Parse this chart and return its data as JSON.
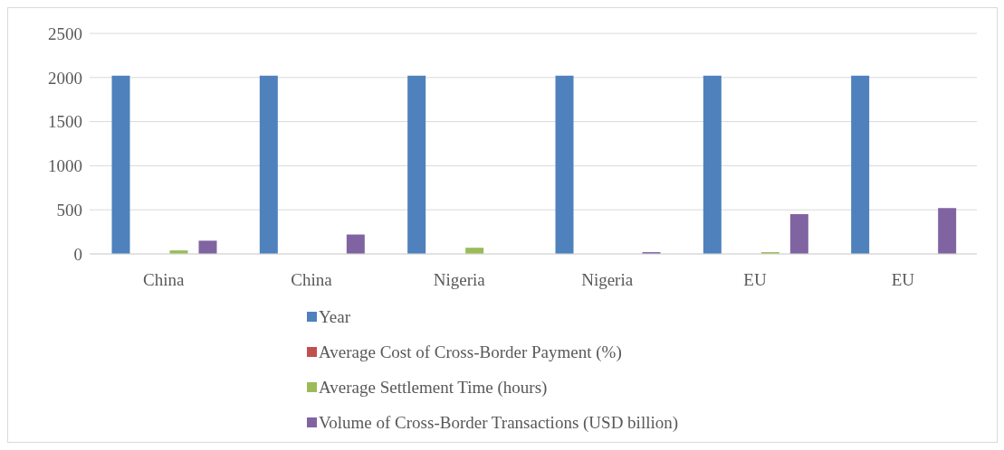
{
  "chart_data": {
    "type": "bar",
    "categories": [
      "China",
      "China",
      "Nigeria",
      "Nigeria",
      "EU",
      "EU"
    ],
    "series": [
      {
        "name": "Year",
        "color": "#4f81bd",
        "values": [
          2020,
          2020,
          2020,
          2020,
          2020,
          2020
        ]
      },
      {
        "name": "Average Cost of Cross-Border Payment (%)",
        "color": "#c0504d",
        "values": [
          0,
          0,
          0,
          0,
          0,
          0
        ]
      },
      {
        "name": "Average Settlement Time (hours)",
        "color": "#9bbb59",
        "values": [
          40,
          0,
          70,
          0,
          20,
          0
        ]
      },
      {
        "name": "Volume of Cross-Border Transactions (USD billion)",
        "color": "#8064a2",
        "values": [
          150,
          220,
          0,
          20,
          450,
          520
        ]
      }
    ],
    "ylim": [
      0,
      2500
    ],
    "yticks": [
      0,
      500,
      1000,
      1500,
      2000,
      2500
    ],
    "grid": "y",
    "legend": "bottom"
  }
}
